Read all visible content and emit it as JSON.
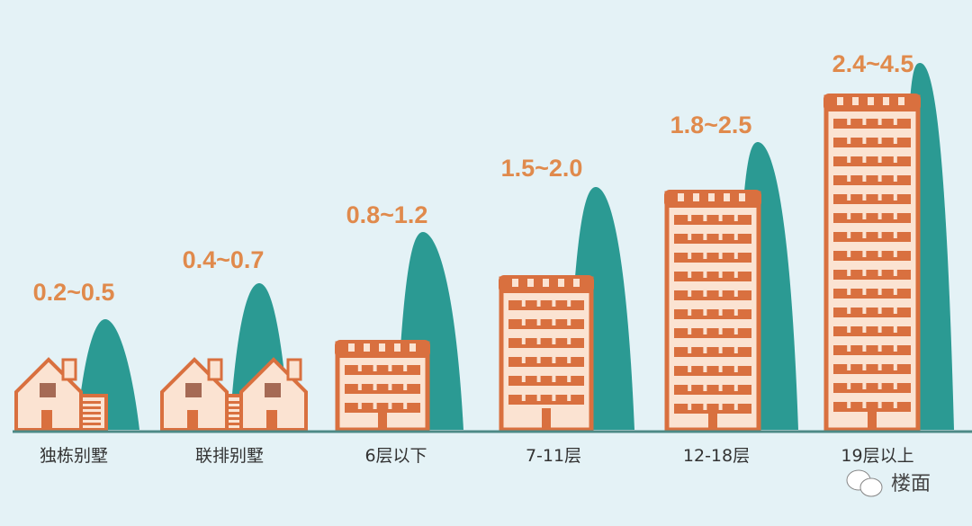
{
  "chart_data": {
    "type": "bar",
    "categories": [
      "独栋别墅",
      "联排别墅",
      "6层以下",
      "7-11层",
      "12-18层",
      "19层以上"
    ],
    "ranges": [
      [
        0.2,
        0.5
      ],
      [
        0.4,
        0.7
      ],
      [
        0.8,
        1.2
      ],
      [
        1.5,
        2.0
      ],
      [
        1.8,
        2.5
      ],
      [
        2.4,
        4.5
      ]
    ],
    "value_labels": [
      "0.2~0.5",
      "0.4~0.7",
      "0.8~1.2",
      "1.5~2.0",
      "1.8~2.5",
      "2.4~4.5"
    ],
    "title": "",
    "xlabel": "",
    "ylabel": "",
    "colors": {
      "building": "#d9703f",
      "building_fill": "#fbe3d2",
      "hill": "#2b9a93",
      "label": "#e08a4c",
      "background": "#e4f2f6"
    }
  },
  "watermark": {
    "text": "楼面",
    "icon": "wechat-icon"
  }
}
